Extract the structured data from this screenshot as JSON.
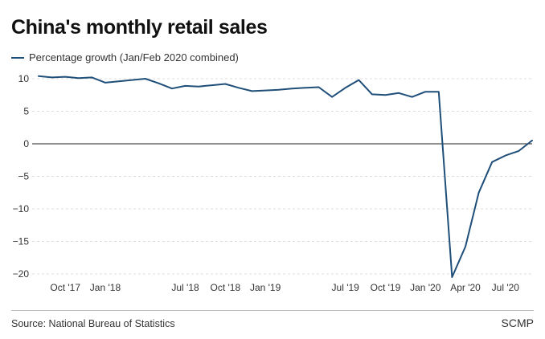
{
  "header": {
    "title": "China's monthly retail sales"
  },
  "footer": {
    "source": "Source: National Bureau of Statistics",
    "brand": "SCMP"
  },
  "colors": {
    "line": "#1f4e79",
    "grid": "#dddddd",
    "zero": "#222222",
    "text": "#333333"
  },
  "chart_data": {
    "type": "line",
    "title": "China's monthly retail sales",
    "xlabel": "",
    "ylabel": "",
    "ylim": [
      -21,
      11
    ],
    "yticks": [
      10,
      5,
      0,
      -5,
      -10,
      -15,
      -20
    ],
    "ytick_labels": [
      "10",
      "5",
      "0",
      "−5",
      "−10",
      "−15",
      "−20"
    ],
    "xtick_labels": [
      {
        "label": "Oct '17",
        "date": "2017-10"
      },
      {
        "label": "Jan '18",
        "date": "2018-01"
      },
      {
        "label": "Jul '18",
        "date": "2018-07"
      },
      {
        "label": "Oct '18",
        "date": "2018-10"
      },
      {
        "label": "Jan '19",
        "date": "2019-01"
      },
      {
        "label": "Jul '19",
        "date": "2019-07"
      },
      {
        "label": "Oct '19",
        "date": "2019-10"
      },
      {
        "label": "Jan '20",
        "date": "2020-01"
      },
      {
        "label": "Apr '20",
        "date": "2020-04"
      },
      {
        "label": "Jul '20",
        "date": "2020-07"
      }
    ],
    "grid": "horizontal-dashed",
    "legend": "top-left",
    "series": [
      {
        "name": "Percentage growth (Jan/Feb 2020 combined)",
        "points": [
          {
            "x": "2017-08",
            "y": 10.4
          },
          {
            "x": "2017-09",
            "y": 10.2
          },
          {
            "x": "2017-10",
            "y": 10.3
          },
          {
            "x": "2017-11",
            "y": 10.1
          },
          {
            "x": "2017-12",
            "y": 10.2
          },
          {
            "x": "2018-01",
            "y": 9.4
          },
          {
            "x": "2018-02",
            "y": 9.6
          },
          {
            "x": "2018-03",
            "y": 9.8
          },
          {
            "x": "2018-04",
            "y": 10.0
          },
          {
            "x": "2018-05",
            "y": 9.3
          },
          {
            "x": "2018-06",
            "y": 8.5
          },
          {
            "x": "2018-07",
            "y": 8.9
          },
          {
            "x": "2018-08",
            "y": 8.8
          },
          {
            "x": "2018-09",
            "y": 9.0
          },
          {
            "x": "2018-10",
            "y": 9.2
          },
          {
            "x": "2018-11",
            "y": 8.6
          },
          {
            "x": "2018-12",
            "y": 8.1
          },
          {
            "x": "2019-01",
            "y": 8.2
          },
          {
            "x": "2019-02",
            "y": 8.3
          },
          {
            "x": "2019-03",
            "y": 8.5
          },
          {
            "x": "2019-04",
            "y": 8.6
          },
          {
            "x": "2019-05",
            "y": 8.7
          },
          {
            "x": "2019-06",
            "y": 7.2
          },
          {
            "x": "2019-07",
            "y": 8.6
          },
          {
            "x": "2019-08",
            "y": 9.8
          },
          {
            "x": "2019-09",
            "y": 7.6
          },
          {
            "x": "2019-10",
            "y": 7.5
          },
          {
            "x": "2019-11",
            "y": 7.8
          },
          {
            "x": "2019-12",
            "y": 7.2
          },
          {
            "x": "2020-01",
            "y": 8.0
          },
          {
            "x": "2020-02",
            "y": 8.0
          },
          {
            "x": "2020-03",
            "y": -20.5
          },
          {
            "x": "2020-04",
            "y": -15.8
          },
          {
            "x": "2020-05",
            "y": -7.5
          },
          {
            "x": "2020-06",
            "y": -2.8
          },
          {
            "x": "2020-07",
            "y": -1.8
          },
          {
            "x": "2020-08",
            "y": -1.1
          },
          {
            "x": "2020-09",
            "y": 0.5
          }
        ]
      }
    ]
  }
}
